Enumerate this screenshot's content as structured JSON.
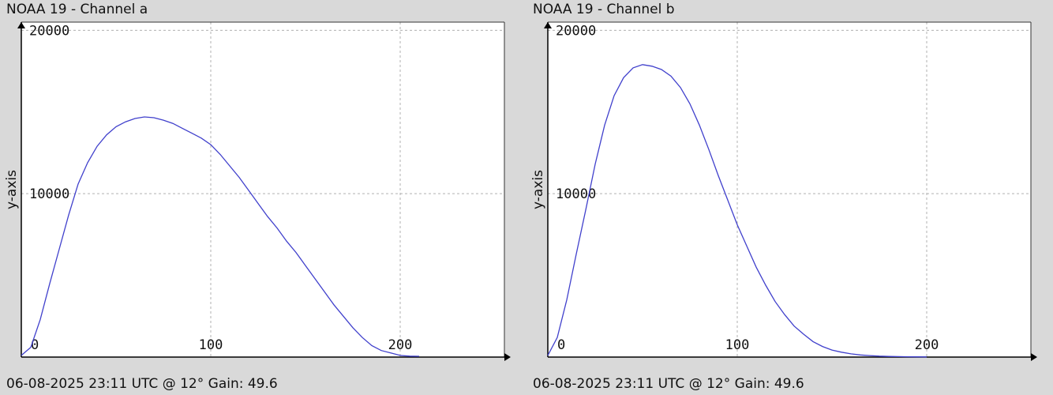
{
  "chart_data": [
    {
      "type": "line",
      "title": "NOAA 19 - Channel a",
      "footer": "06-08-2025 23:11 UTC @ 12° Gain: 49.6",
      "ylabel": "y-axis",
      "xlabel": "",
      "xlim": [
        0,
        255
      ],
      "ylim": [
        0,
        20500
      ],
      "x_ticks": [
        0,
        100,
        200
      ],
      "y_ticks": [
        10000,
        20000
      ],
      "grid": true,
      "color": "#4040cc",
      "series": [
        {
          "x": [
            0,
            5,
            10,
            15,
            20,
            25,
            30,
            35,
            40,
            45,
            50,
            55,
            60,
            65,
            70,
            75,
            80,
            85,
            90,
            95,
            100,
            105,
            110,
            115,
            120,
            125,
            130,
            135,
            140,
            145,
            150,
            155,
            160,
            165,
            170,
            175,
            180,
            185,
            190,
            195,
            200,
            205,
            210
          ],
          "y": [
            100,
            600,
            2300,
            4500,
            6600,
            8700,
            10600,
            11900,
            12900,
            13600,
            14100,
            14400,
            14600,
            14700,
            14650,
            14500,
            14300,
            14000,
            13700,
            13400,
            13000,
            12400,
            11700,
            11000,
            10200,
            9400,
            8600,
            7900,
            7100,
            6400,
            5600,
            4800,
            4000,
            3200,
            2500,
            1800,
            1200,
            700,
            400,
            250,
            100,
            60,
            50
          ]
        }
      ]
    },
    {
      "type": "line",
      "title": "NOAA 19 - Channel b",
      "footer": "06-08-2025 23:11 UTC @ 12° Gain: 49.6",
      "ylabel": "y-axis",
      "xlabel": "",
      "xlim": [
        0,
        255
      ],
      "ylim": [
        0,
        20500
      ],
      "x_ticks": [
        0,
        100,
        200
      ],
      "y_ticks": [
        10000,
        20000
      ],
      "grid": true,
      "color": "#4040cc",
      "series": [
        {
          "x": [
            0,
            5,
            10,
            15,
            20,
            25,
            30,
            35,
            40,
            45,
            50,
            55,
            60,
            65,
            70,
            75,
            80,
            85,
            90,
            95,
            100,
            105,
            110,
            115,
            120,
            125,
            130,
            135,
            140,
            145,
            150,
            155,
            160,
            165,
            170,
            175,
            180,
            185,
            190,
            195,
            200
          ],
          "y": [
            100,
            1200,
            3500,
            6300,
            9000,
            11800,
            14200,
            16000,
            17100,
            17700,
            17900,
            17800,
            17600,
            17200,
            16500,
            15500,
            14200,
            12700,
            11100,
            9600,
            8100,
            6800,
            5500,
            4400,
            3400,
            2600,
            1900,
            1400,
            950,
            650,
            430,
            300,
            200,
            130,
            90,
            60,
            40,
            30,
            20,
            15,
            10
          ]
        }
      ]
    }
  ]
}
